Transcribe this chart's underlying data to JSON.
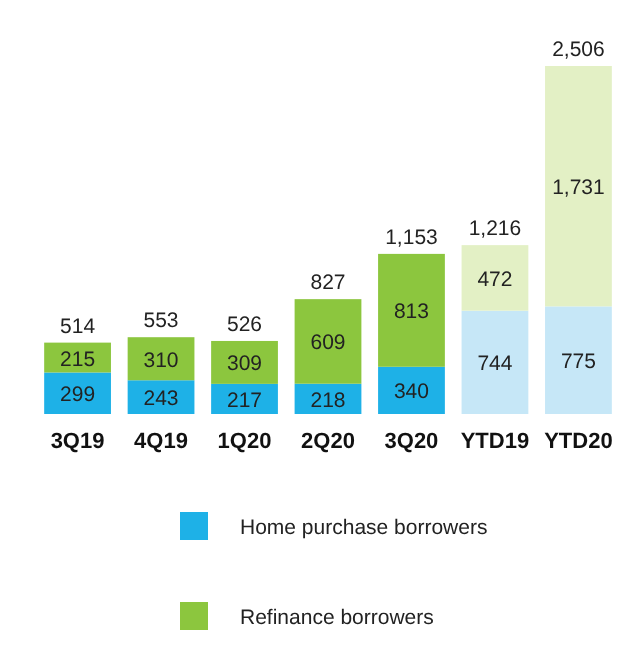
{
  "chart_data": {
    "type": "bar",
    "stacked": true,
    "legend": "bottom",
    "categories": [
      "3Q19",
      "4Q19",
      "1Q20",
      "2Q20",
      "3Q20",
      "YTD19",
      "YTD20"
    ],
    "series": [
      {
        "name": "Home purchase borrowers",
        "color": "#1eb1e7",
        "colors": [
          "#1eb1e7",
          "#1eb1e7",
          "#1eb1e7",
          "#1eb1e7",
          "#1eb1e7",
          "#c6e7f7",
          "#c6e7f7"
        ],
        "values": [
          299,
          243,
          217,
          218,
          340,
          744,
          775
        ],
        "value_labels": [
          "299",
          "243",
          "217",
          "218",
          "340",
          "744",
          "775"
        ]
      },
      {
        "name": "Refinance borrowers",
        "color": "#8cc63e",
        "colors": [
          "#8cc63e",
          "#8cc63e",
          "#8cc63e",
          "#8cc63e",
          "#8cc63e",
          "#e3f0c5",
          "#e3f0c5"
        ],
        "values": [
          215,
          310,
          309,
          609,
          813,
          472,
          1731
        ],
        "value_labels": [
          "215",
          "310",
          "309",
          "609",
          "813",
          "472",
          "1,731"
        ]
      }
    ],
    "totals": [
      "514",
      "553",
      "526",
      "827",
      "1,153",
      "1,216",
      "2,506"
    ]
  }
}
